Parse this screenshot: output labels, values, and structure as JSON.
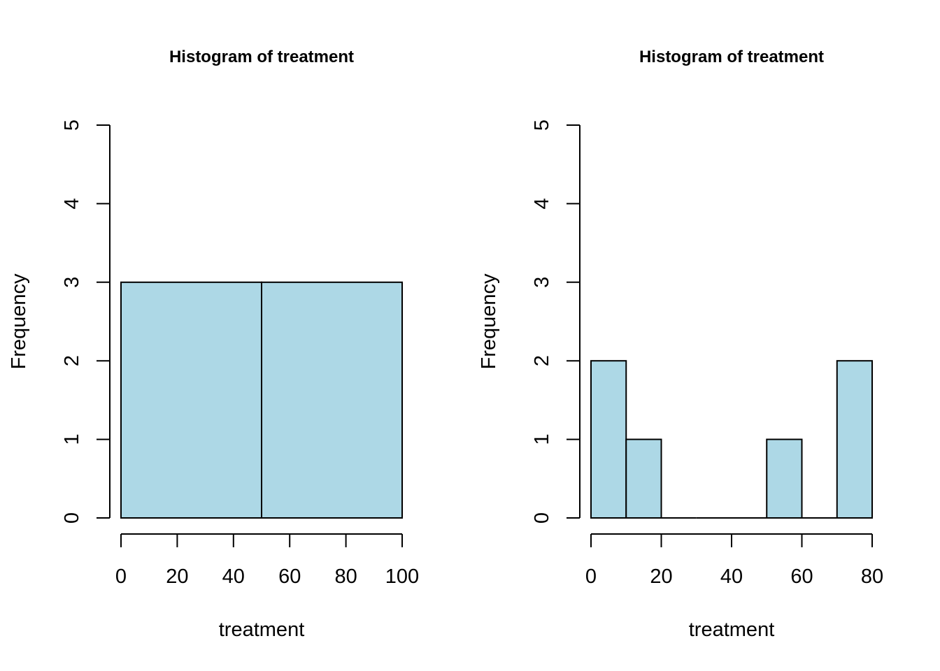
{
  "chart_data": [
    {
      "type": "bar",
      "title": "Histogram of treatment",
      "xlabel": "treatment",
      "ylabel": "Frequency",
      "bins": [
        [
          0,
          50
        ],
        [
          50,
          100
        ]
      ],
      "values": [
        3,
        3
      ],
      "xlim": [
        0,
        100
      ],
      "ylim": [
        0,
        5
      ],
      "xticks": [
        0,
        20,
        40,
        60,
        80,
        100
      ],
      "yticks": [
        0,
        1,
        2,
        3,
        4,
        5
      ],
      "bar_color": "#add8e6"
    },
    {
      "type": "bar",
      "title": "Histogram of treatment",
      "xlabel": "treatment",
      "ylabel": "Frequency",
      "bins": [
        [
          0,
          10
        ],
        [
          10,
          20
        ],
        [
          20,
          30
        ],
        [
          30,
          40
        ],
        [
          40,
          50
        ],
        [
          50,
          60
        ],
        [
          60,
          70
        ],
        [
          70,
          80
        ]
      ],
      "values": [
        2,
        1,
        0,
        0,
        0,
        1,
        0,
        2
      ],
      "xlim": [
        0,
        80
      ],
      "ylim": [
        0,
        5
      ],
      "xticks": [
        0,
        20,
        40,
        60,
        80
      ],
      "yticks": [
        0,
        1,
        2,
        3,
        4,
        5
      ],
      "bar_color": "#add8e6"
    }
  ]
}
